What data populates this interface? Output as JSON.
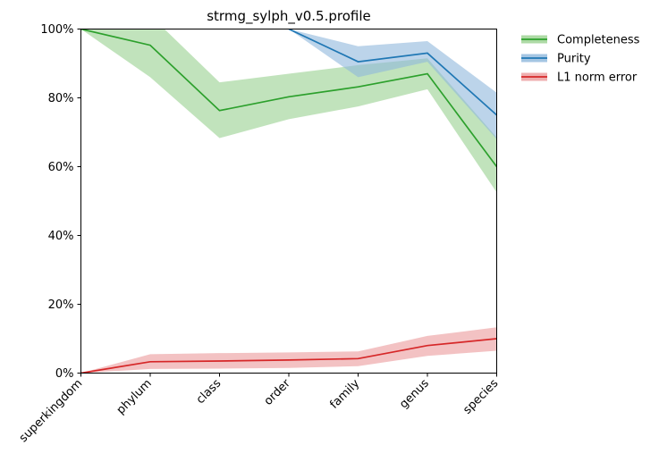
{
  "chart_data": {
    "type": "line",
    "title": "strmg_sylph_v0.5.profile",
    "xlabel": "",
    "ylabel": "",
    "categories": [
      "superkingdom",
      "phylum",
      "class",
      "order",
      "family",
      "genus",
      "species"
    ],
    "ylim": [
      0,
      100
    ],
    "yticks": [
      "0%",
      "20%",
      "40%",
      "60%",
      "80%",
      "100%"
    ],
    "ytick_values": [
      0,
      20,
      40,
      60,
      80,
      100
    ],
    "grid": false,
    "legend_position": "outside top-right",
    "series": [
      {
        "name": "Completeness",
        "color": "#2ca02c",
        "band_color": "#98d18f",
        "values": [
          100,
          95.3,
          76.3,
          80.3,
          83.2,
          87.0,
          60.0
        ],
        "lower": [
          100,
          86.0,
          68.3,
          73.8,
          77.5,
          82.5,
          52.5
        ],
        "upper": [
          100,
          104.0,
          84.5,
          87.0,
          89.5,
          91.5,
          68.5
        ]
      },
      {
        "name": "Purity",
        "color": "#1f77b4",
        "band_color": "#8fb8dc",
        "values": [
          null,
          null,
          null,
          100,
          90.5,
          93.0,
          75.0
        ],
        "lower": [
          null,
          null,
          null,
          100,
          86.0,
          90.5,
          68.0
        ],
        "upper": [
          null,
          null,
          null,
          100,
          95.0,
          96.5,
          81.5
        ]
      },
      {
        "name": "L1 norm error",
        "color": "#d62728",
        "band_color": "#eb9a9b",
        "values": [
          0,
          3.3,
          3.5,
          3.8,
          4.2,
          8.0,
          10.0
        ],
        "lower": [
          0,
          1.2,
          1.3,
          1.5,
          2.0,
          5.0,
          6.5
        ],
        "upper": [
          0,
          5.5,
          5.8,
          6.0,
          6.3,
          10.8,
          13.3
        ]
      }
    ]
  }
}
